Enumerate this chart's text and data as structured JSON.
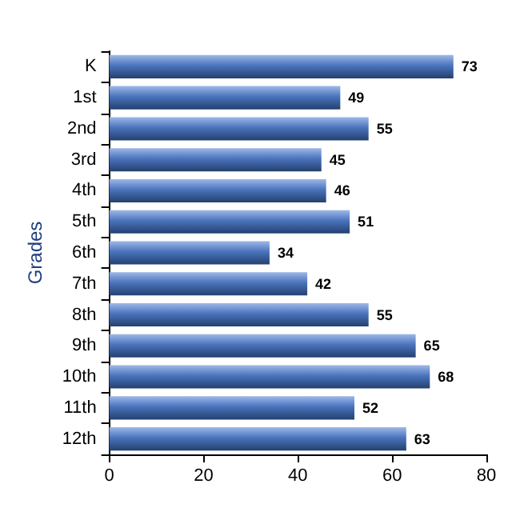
{
  "chart_data": {
    "type": "bar",
    "orientation": "horizontal",
    "ylabel": "Grades",
    "categories": [
      "K",
      "1st",
      "2nd",
      "3rd",
      "4th",
      "5th",
      "6th",
      "7th",
      "8th",
      "9th",
      "10th",
      "11th",
      "12th"
    ],
    "values": [
      73,
      49,
      55,
      45,
      46,
      51,
      34,
      42,
      55,
      65,
      68,
      52,
      63
    ],
    "color": "#4a74bd",
    "xlim": [
      0,
      80
    ],
    "xticks": [
      0,
      20,
      40,
      60,
      80
    ],
    "grid": false,
    "data_labels": true
  }
}
